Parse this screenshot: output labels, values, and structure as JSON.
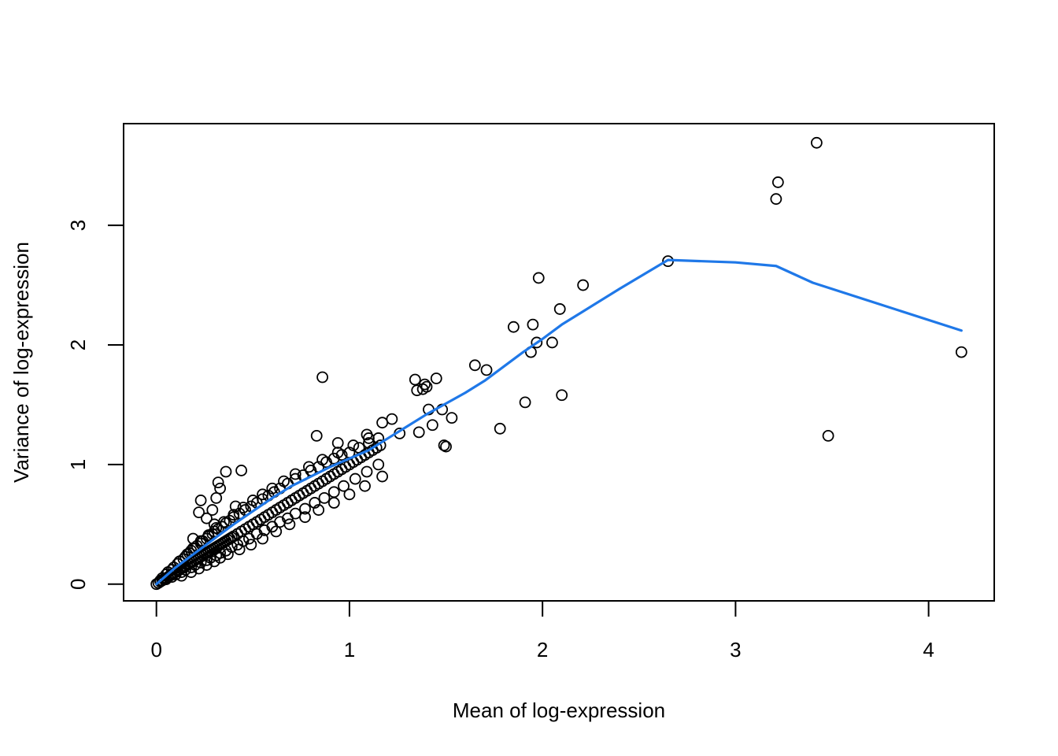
{
  "chart_data": {
    "type": "scatter",
    "title": "",
    "xlabel": "Mean of log-expression",
    "ylabel": "Variance of log-expression",
    "xlim": [
      -0.17,
      4.34
    ],
    "ylim": [
      -0.14,
      3.85
    ],
    "x_ticks": [
      0,
      1,
      2,
      3,
      4
    ],
    "y_ticks": [
      0,
      1,
      2,
      3
    ],
    "grid": false,
    "legend": "none",
    "colors": {
      "points": "#000000",
      "trend": "#1f78e8",
      "axes": "#000000"
    },
    "series": [
      {
        "kind": "points",
        "x": [
          0.0,
          0.01,
          0.02,
          0.03,
          0.04,
          0.05,
          0.06,
          0.07,
          0.08,
          0.09,
          0.1,
          0.11,
          0.12,
          0.13,
          0.14,
          0.15,
          0.16,
          0.17,
          0.18,
          0.19,
          0.2,
          0.21,
          0.22,
          0.23,
          0.24,
          0.25,
          0.26,
          0.27,
          0.28,
          0.29,
          0.3,
          0.31,
          0.32,
          0.33,
          0.34,
          0.35,
          0.36,
          0.37,
          0.38,
          0.39,
          0.4,
          0.42,
          0.44,
          0.46,
          0.48,
          0.5,
          0.52,
          0.54,
          0.56,
          0.58,
          0.6,
          0.62,
          0.64,
          0.66,
          0.68,
          0.7,
          0.72,
          0.74,
          0.76,
          0.78,
          0.8,
          0.82,
          0.84,
          0.86,
          0.88,
          0.9,
          0.92,
          0.94,
          0.96,
          0.98,
          1.0,
          1.02,
          1.04,
          1.06,
          1.08,
          1.1,
          1.12,
          1.14,
          1.16,
          0.02,
          0.03,
          0.05,
          0.06,
          0.08,
          0.09,
          0.11,
          0.12,
          0.14,
          0.15,
          0.17,
          0.18,
          0.2,
          0.21,
          0.23,
          0.24,
          0.26,
          0.27,
          0.29,
          0.3,
          0.32,
          0.34,
          0.36,
          0.38,
          0.4,
          0.43,
          0.46,
          0.49,
          0.52,
          0.55,
          0.58,
          0.61,
          0.64,
          0.68,
          0.72,
          0.76,
          0.8,
          0.84,
          0.88,
          0.92,
          0.96,
          1.0,
          1.05,
          1.1,
          1.15,
          0.05,
          0.08,
          0.1,
          0.13,
          0.15,
          0.18,
          0.2,
          0.23,
          0.26,
          0.28,
          0.31,
          0.33,
          0.36,
          0.39,
          0.42,
          0.45,
          0.48,
          0.52,
          0.56,
          0.6,
          0.64,
          0.68,
          0.72,
          0.77,
          0.82,
          0.87,
          0.92,
          0.97,
          1.03,
          1.09,
          1.15,
          0.12,
          0.16,
          0.19,
          0.23,
          0.27,
          0.31,
          0.35,
          0.4,
          0.45,
          0.5,
          0.55,
          0.6,
          0.66,
          0.72,
          0.79,
          0.86,
          0.94,
          1.02,
          1.1,
          0.13,
          0.18,
          0.22,
          0.26,
          0.3,
          0.33,
          0.37,
          0.43,
          0.49,
          0.55,
          0.62,
          0.69,
          0.77,
          0.84,
          0.92,
          1.0,
          1.08,
          1.17,
          0.23,
          0.29,
          0.32,
          0.31,
          0.36,
          0.44,
          0.33,
          0.22,
          0.26,
          0.3,
          0.19,
          0.41,
          0.83,
          0.86,
          0.94,
          1.09,
          1.17,
          1.22,
          1.26,
          1.34,
          1.36,
          1.38,
          1.39,
          1.4,
          1.41,
          1.43,
          1.45,
          1.48,
          1.49,
          1.5,
          1.53,
          1.35,
          1.65,
          1.71,
          1.78,
          1.85,
          1.91,
          1.94,
          1.95,
          1.97,
          1.98,
          2.05,
          2.09,
          2.1,
          2.21,
          2.65,
          3.21,
          3.22,
          3.42,
          3.48,
          4.17
        ],
        "y": [
          0.0,
          0.01,
          0.02,
          0.03,
          0.04,
          0.05,
          0.06,
          0.07,
          0.08,
          0.09,
          0.1,
          0.11,
          0.12,
          0.13,
          0.14,
          0.15,
          0.16,
          0.17,
          0.18,
          0.19,
          0.2,
          0.21,
          0.22,
          0.23,
          0.24,
          0.25,
          0.26,
          0.27,
          0.28,
          0.29,
          0.3,
          0.31,
          0.32,
          0.33,
          0.34,
          0.35,
          0.36,
          0.37,
          0.38,
          0.39,
          0.4,
          0.42,
          0.44,
          0.46,
          0.48,
          0.5,
          0.52,
          0.54,
          0.56,
          0.58,
          0.6,
          0.62,
          0.64,
          0.66,
          0.68,
          0.7,
          0.72,
          0.74,
          0.76,
          0.78,
          0.8,
          0.82,
          0.84,
          0.86,
          0.88,
          0.9,
          0.92,
          0.94,
          0.96,
          0.98,
          1.0,
          1.02,
          1.04,
          1.06,
          1.08,
          1.1,
          1.12,
          1.14,
          1.16,
          0.03,
          0.05,
          0.08,
          0.1,
          0.12,
          0.14,
          0.17,
          0.19,
          0.21,
          0.23,
          0.26,
          0.28,
          0.3,
          0.32,
          0.34,
          0.36,
          0.38,
          0.4,
          0.42,
          0.44,
          0.46,
          0.48,
          0.51,
          0.53,
          0.56,
          0.59,
          0.62,
          0.65,
          0.68,
          0.71,
          0.74,
          0.77,
          0.8,
          0.84,
          0.88,
          0.91,
          0.95,
          0.98,
          1.02,
          1.05,
          1.08,
          1.1,
          1.14,
          1.18,
          1.22,
          0.04,
          0.06,
          0.08,
          0.1,
          0.12,
          0.14,
          0.16,
          0.18,
          0.2,
          0.22,
          0.24,
          0.26,
          0.28,
          0.31,
          0.33,
          0.36,
          0.38,
          0.42,
          0.45,
          0.48,
          0.52,
          0.55,
          0.59,
          0.63,
          0.68,
          0.72,
          0.77,
          0.82,
          0.88,
          0.94,
          1.0,
          0.19,
          0.25,
          0.3,
          0.36,
          0.41,
          0.47,
          0.52,
          0.58,
          0.64,
          0.7,
          0.75,
          0.8,
          0.86,
          0.92,
          0.98,
          1.04,
          1.1,
          1.16,
          1.22,
          0.07,
          0.1,
          0.13,
          0.16,
          0.19,
          0.22,
          0.25,
          0.29,
          0.33,
          0.38,
          0.44,
          0.5,
          0.56,
          0.62,
          0.68,
          0.75,
          0.82,
          0.9,
          0.7,
          0.62,
          0.85,
          0.72,
          0.94,
          0.95,
          0.8,
          0.6,
          0.55,
          0.5,
          0.38,
          0.65,
          1.24,
          1.73,
          1.18,
          1.25,
          1.35,
          1.38,
          1.26,
          1.71,
          1.27,
          1.63,
          1.67,
          1.65,
          1.46,
          1.33,
          1.72,
          1.46,
          1.16,
          1.15,
          1.39,
          1.62,
          1.83,
          1.79,
          1.3,
          2.15,
          1.52,
          1.94,
          2.17,
          2.02,
          2.56,
          2.02,
          2.3,
          1.58,
          2.5,
          2.7,
          3.22,
          3.36,
          3.69,
          1.24,
          1.94
        ]
      },
      {
        "kind": "trend",
        "x": [
          0.0,
          0.05,
          0.1,
          0.2,
          0.3,
          0.4,
          0.5,
          0.6,
          0.7,
          0.8,
          0.9,
          1.0,
          1.1,
          1.2,
          1.3,
          1.4,
          1.5,
          1.6,
          1.7,
          1.8,
          1.9,
          2.0,
          2.1,
          2.2,
          2.4,
          2.65,
          3.0,
          3.21,
          3.4,
          4.17
        ],
        "y": [
          0.0,
          0.07,
          0.14,
          0.26,
          0.38,
          0.5,
          0.61,
          0.72,
          0.82,
          0.9,
          0.98,
          1.05,
          1.12,
          1.22,
          1.32,
          1.42,
          1.51,
          1.6,
          1.7,
          1.82,
          1.94,
          2.05,
          2.17,
          2.27,
          2.47,
          2.71,
          2.69,
          2.66,
          2.52,
          2.12
        ]
      }
    ]
  }
}
